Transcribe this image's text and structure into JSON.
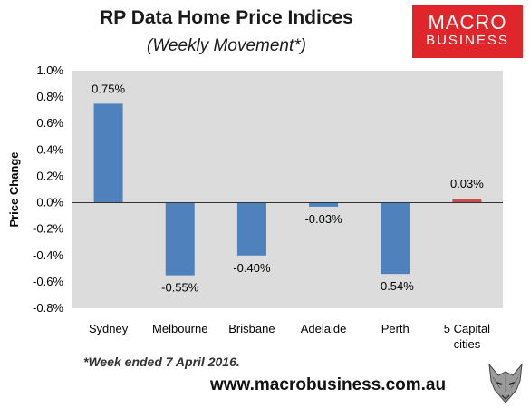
{
  "header": {
    "title": "RP Data Home Price Indices",
    "subtitle": "(Weekly Movement*)"
  },
  "logo": {
    "line1": "MACRO",
    "line2": "BUSINESS",
    "color": "#e0262b"
  },
  "footer": {
    "footnote": "*Week ended 7 April 2016.",
    "website": "www.macrobusiness.com.au"
  },
  "mascot": {
    "icon": "wolf-icon"
  },
  "chart_data": {
    "type": "bar",
    "title": "RP Data Home Price Indices",
    "subtitle": "(Weekly Movement*)",
    "xlabel": "",
    "ylabel": "Price Change",
    "categories": [
      "Sydney",
      "Melbourne",
      "Brisbane",
      "Adelaide",
      "Perth",
      "5 Capital cities"
    ],
    "category_lines": [
      [
        "Sydney"
      ],
      [
        "Melbourne"
      ],
      [
        "Brisbane"
      ],
      [
        "Adelaide"
      ],
      [
        "Perth"
      ],
      [
        "5 Capital",
        "cities"
      ]
    ],
    "values": [
      0.75,
      -0.55,
      -0.4,
      -0.03,
      -0.54,
      0.03
    ],
    "data_labels": [
      "0.75%",
      "-0.55%",
      "-0.40%",
      "-0.03%",
      "-0.54%",
      "0.03%"
    ],
    "bar_colors": [
      "#4f81bd",
      "#4f81bd",
      "#4f81bd",
      "#4f81bd",
      "#4f81bd",
      "#c0504d"
    ],
    "ylim": [
      -0.8,
      1.0
    ],
    "yticks": [
      1.0,
      0.8,
      0.6,
      0.4,
      0.2,
      0.0,
      -0.2,
      -0.4,
      -0.6,
      -0.8
    ],
    "ytick_labels": [
      "1.0%",
      "0.8%",
      "0.6%",
      "0.4%",
      "0.2%",
      "0.0%",
      "-0.2%",
      "-0.4%",
      "-0.6%",
      "-0.8%"
    ],
    "plot_background": "#dcdcdc",
    "grid": false,
    "legend": "none"
  }
}
